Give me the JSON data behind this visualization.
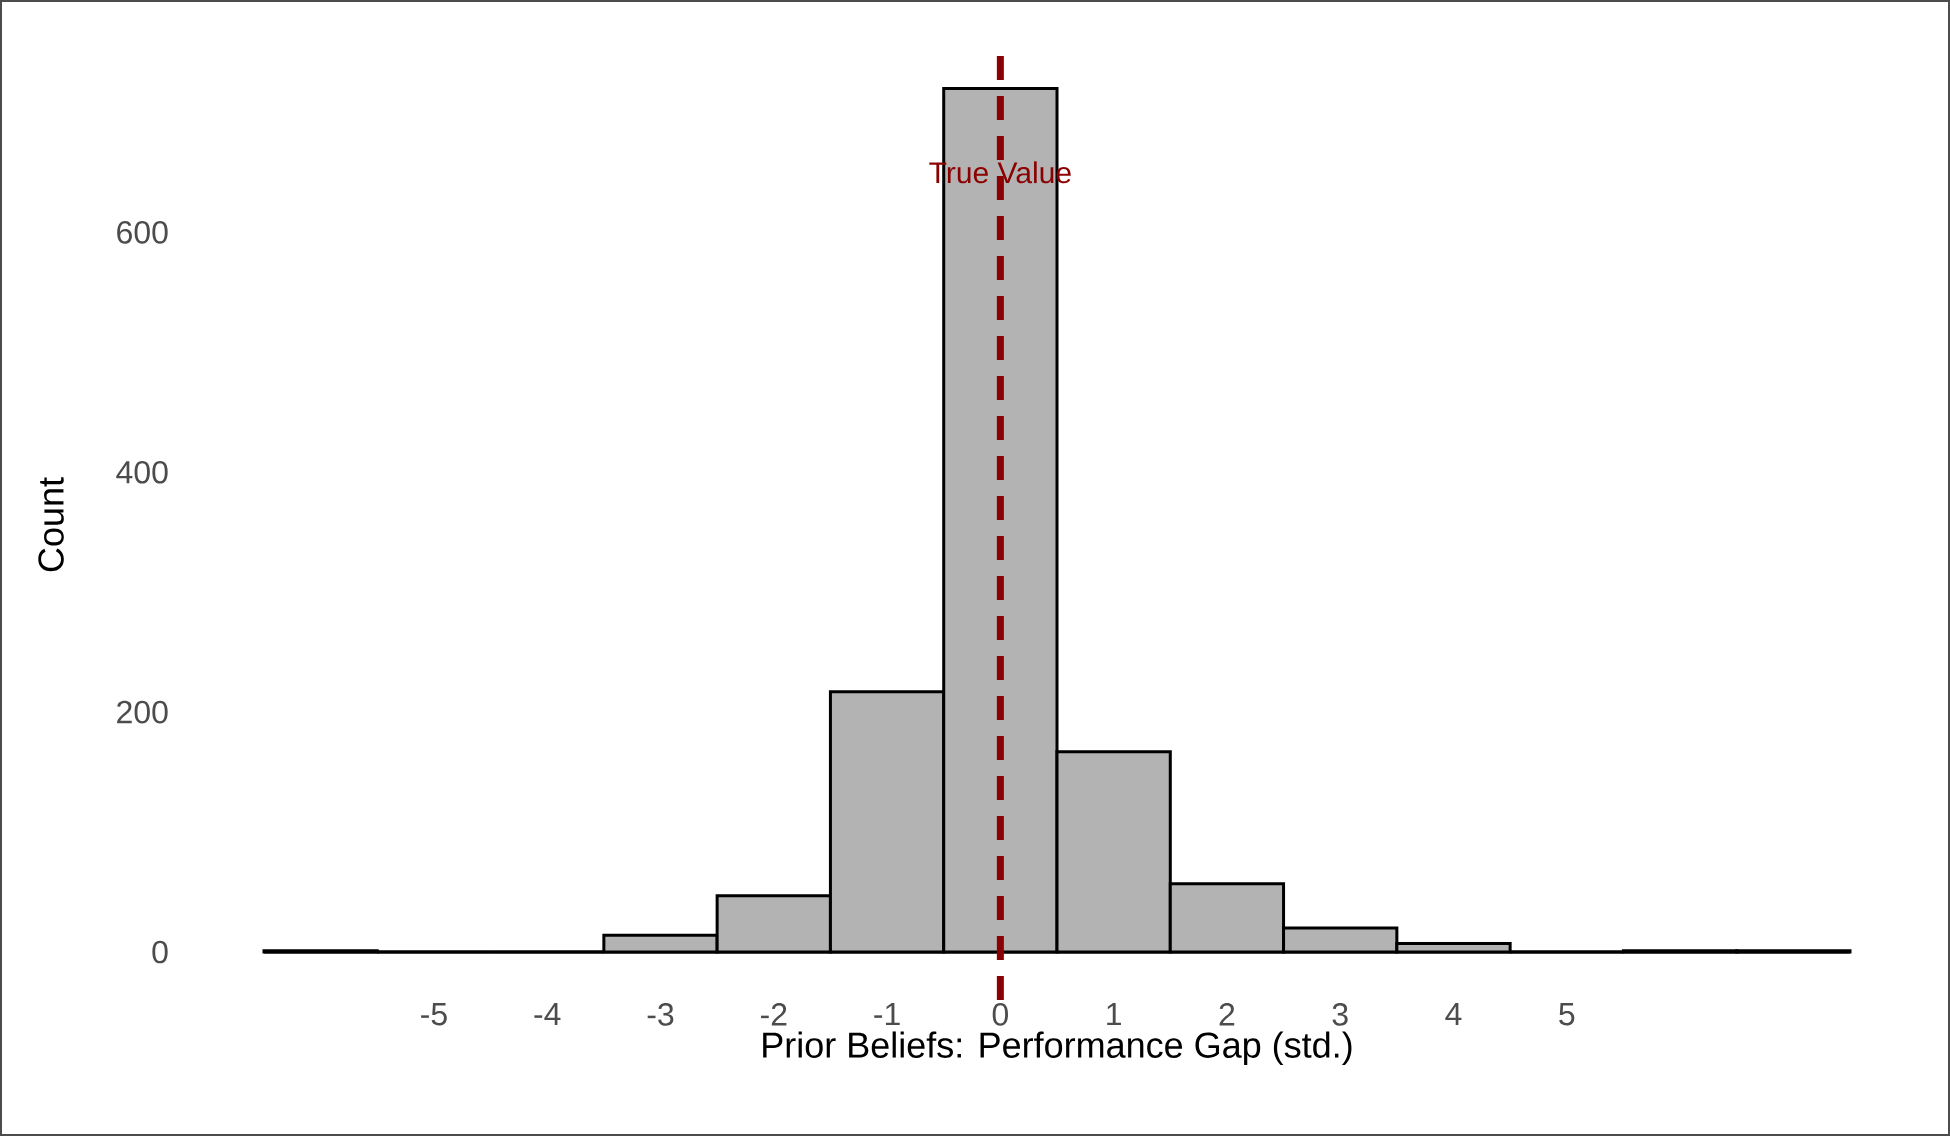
{
  "chart_data": {
    "type": "histogram",
    "xlabel": "Prior Beliefs: Performance Gap (std.)",
    "ylabel": "Count",
    "bins": [
      -6.5,
      -5.5,
      -4.5,
      -3.5,
      -2.5,
      -1.5,
      -0.5,
      0.5,
      1.5,
      2.5,
      3.5,
      4.5,
      5.5,
      6.5,
      7.5
    ],
    "values": [
      1,
      0,
      0,
      14,
      47,
      217,
      720,
      167,
      57,
      20,
      7,
      0,
      1,
      1
    ],
    "color": "#b3b3b3",
    "xlim": [
      -6.5,
      7.5
    ],
    "ylim": [
      -40,
      752
    ],
    "xticks": [
      -5,
      -4,
      -3,
      -2,
      -1,
      0,
      1,
      2,
      3,
      4,
      5
    ],
    "yticks": [
      0,
      200,
      400,
      600
    ],
    "grid": false,
    "ref_lines": [
      {
        "axis": "x",
        "value": 0,
        "label": "True Value",
        "color": "#8b0000",
        "line_style": "dashed"
      }
    ]
  }
}
